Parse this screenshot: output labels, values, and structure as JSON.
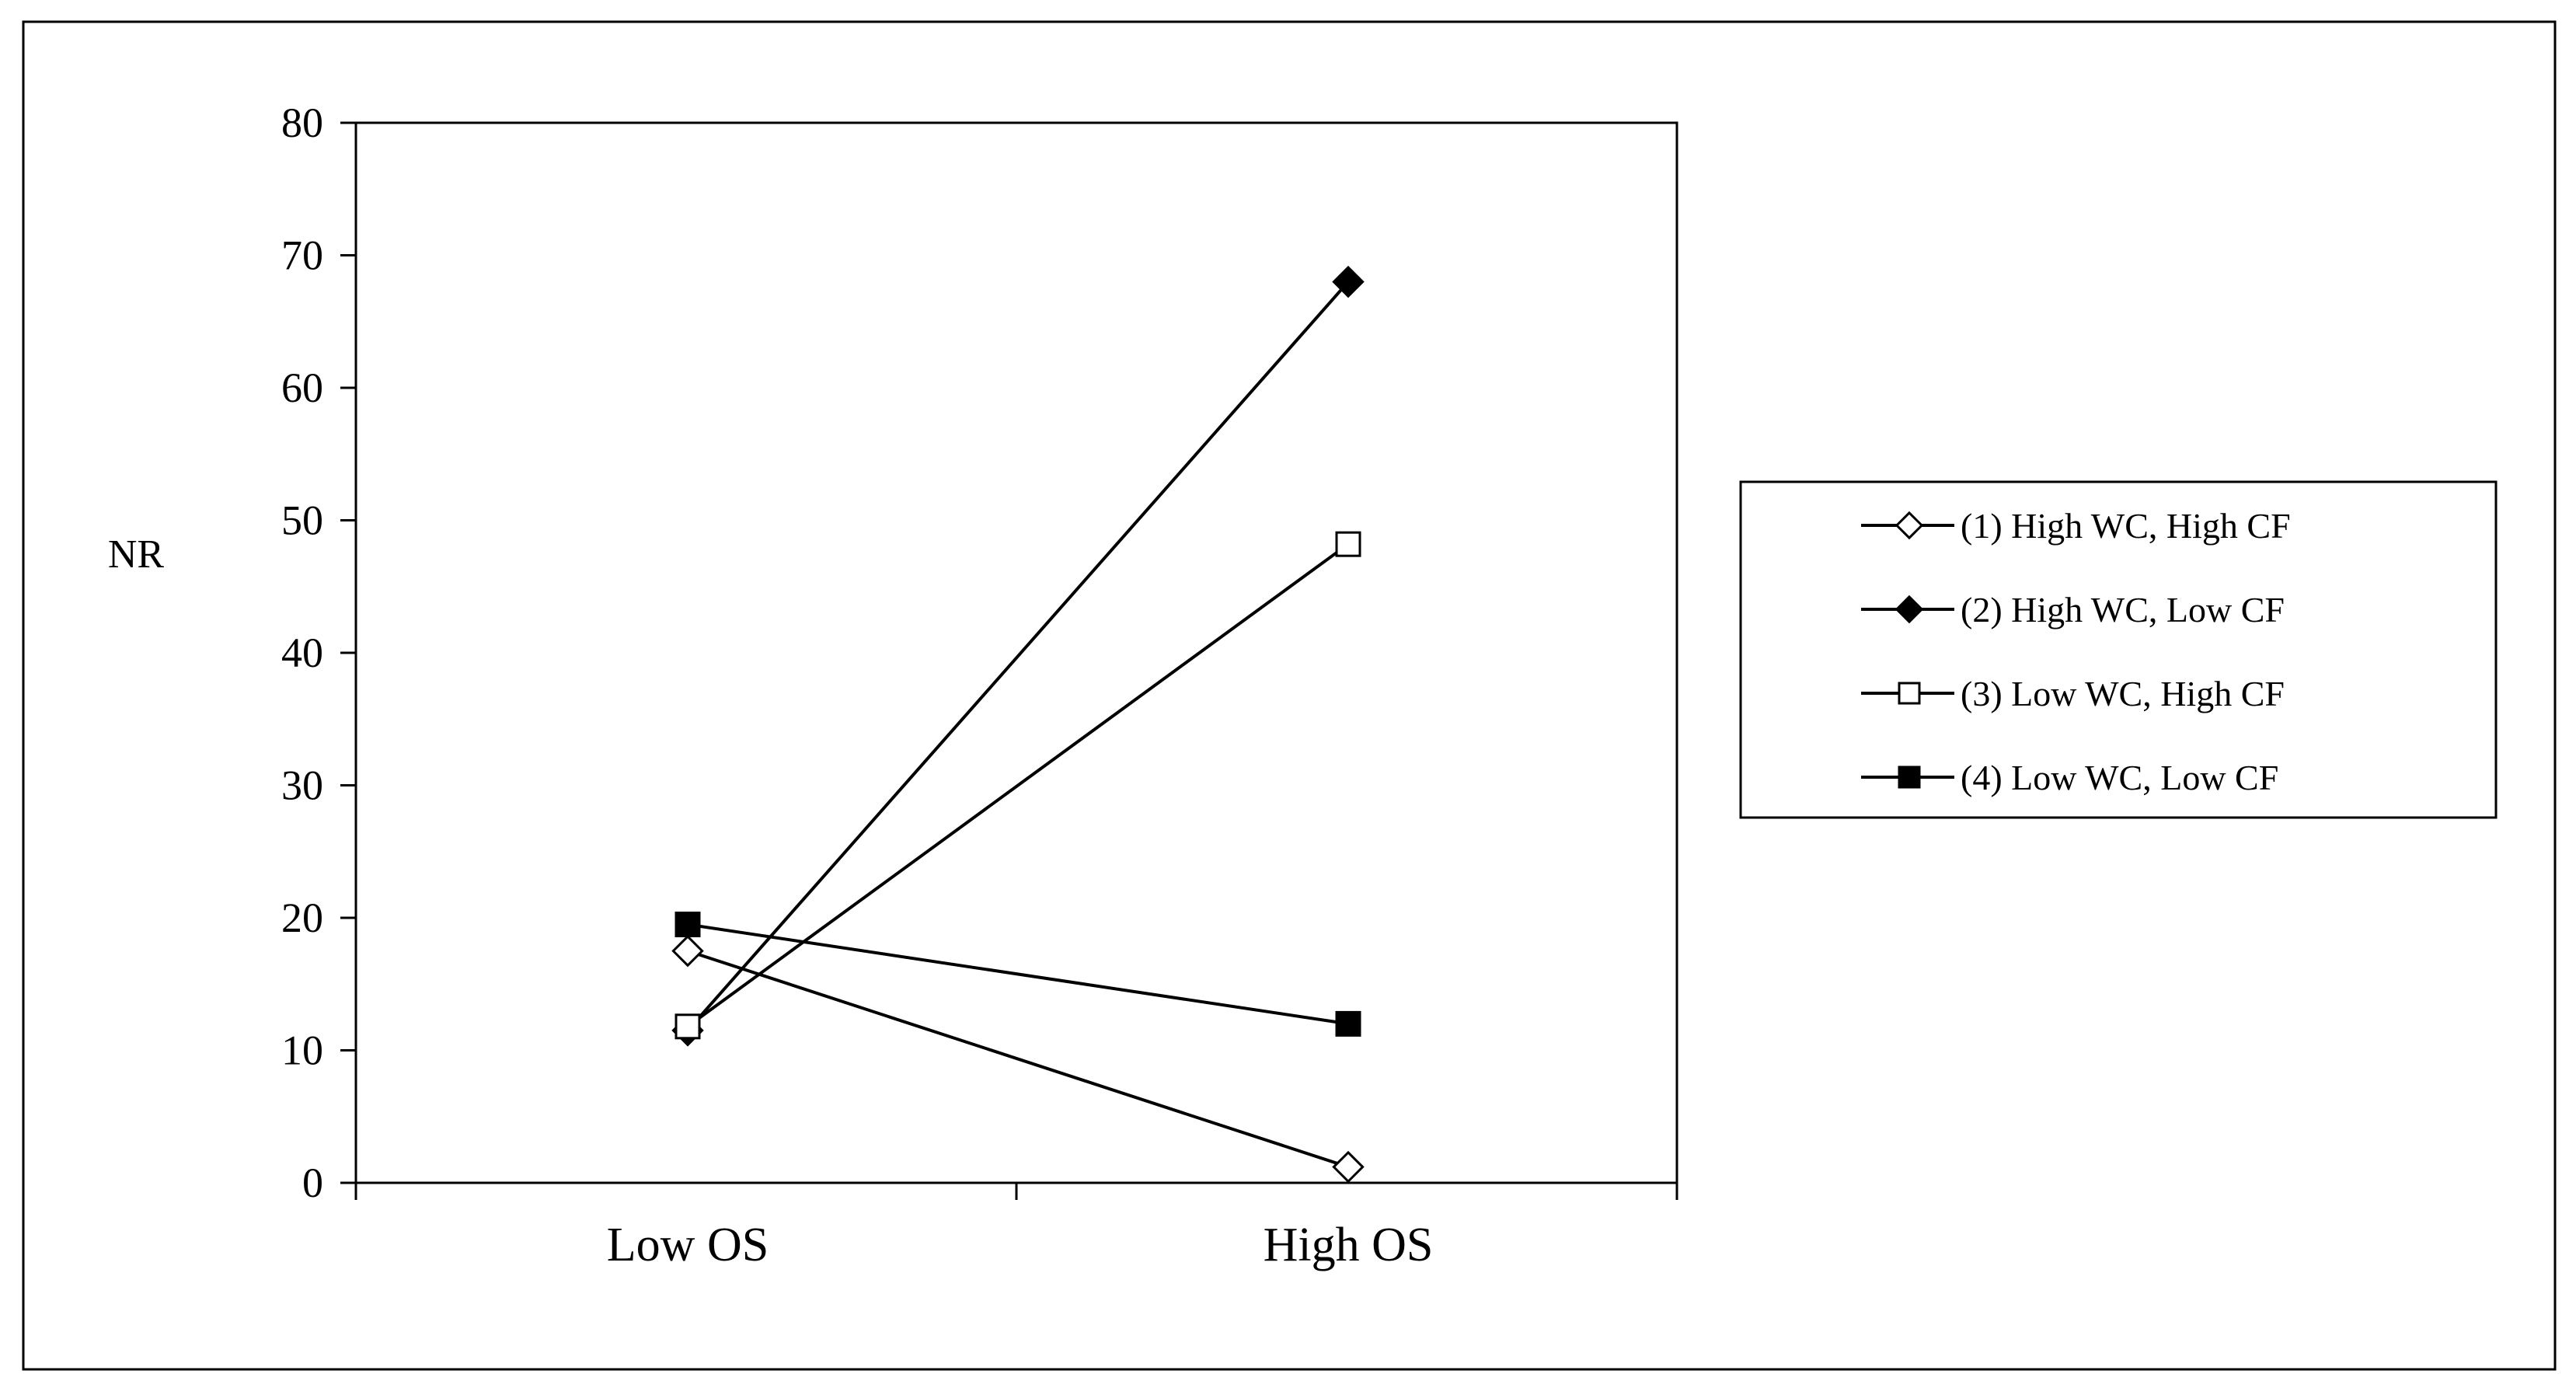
{
  "colors": {
    "background": "#ffffff",
    "ink": "#000000",
    "marker_hollow_fill": "#ffffff"
  },
  "chart_data": {
    "type": "line",
    "title": "",
    "xlabel": "",
    "ylabel": "NR",
    "categories": [
      "Low OS",
      "High OS"
    ],
    "ylim": [
      0,
      80
    ],
    "yticks": [
      0,
      10,
      20,
      30,
      40,
      50,
      60,
      70,
      80
    ],
    "grid": false,
    "legend_position": "right",
    "series": [
      {
        "name": "(1) High WC, High CF",
        "marker": "diamond-open",
        "values": [
          17.5,
          1.2
        ]
      },
      {
        "name": "(2) High WC, Low CF",
        "marker": "diamond-filled",
        "values": [
          11.5,
          68
        ]
      },
      {
        "name": "(3) Low WC, High CF",
        "marker": "square-open",
        "values": [
          11.8,
          48.2
        ]
      },
      {
        "name": "(4) Low WC, Low CF",
        "marker": "square-filled",
        "values": [
          19.5,
          12
        ]
      }
    ]
  }
}
